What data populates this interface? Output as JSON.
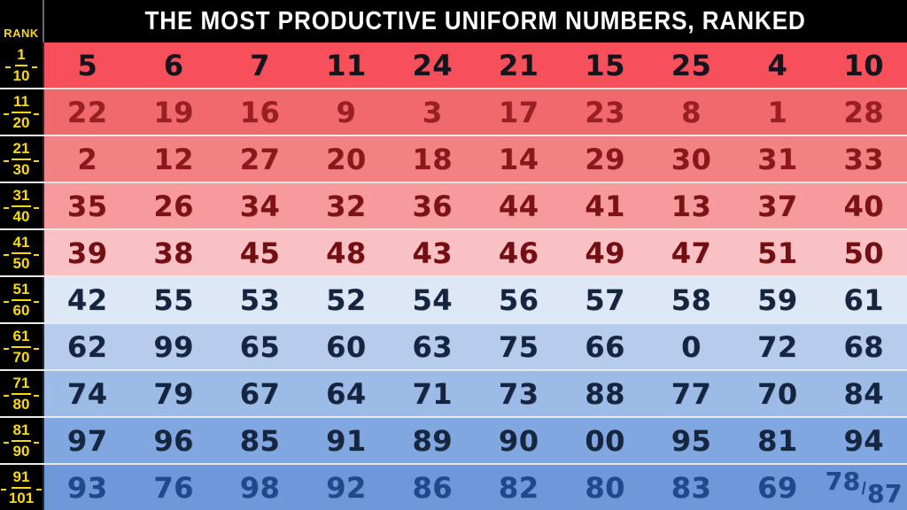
{
  "header": {
    "title": "THE MOST PRODUCTIVE UNIFORM NUMBERS, RANKED",
    "rank_label": "RANK",
    "bg": "#000000",
    "title_color": "#ffffff",
    "rank_label_color": "#fada05"
  },
  "rows": [
    {
      "rank_top": "1",
      "rank_bottom": "10",
      "bg": "#f8505a",
      "fg": "#14141f",
      "numbers": [
        "5",
        "6",
        "7",
        "11",
        "24",
        "21",
        "15",
        "25",
        "4",
        "10"
      ]
    },
    {
      "rank_top": "11",
      "rank_bottom": "20",
      "bg": "#ef696d",
      "fg": "#9a1e24",
      "numbers": [
        "22",
        "19",
        "16",
        "9",
        "3",
        "17",
        "23",
        "8",
        "1",
        "28"
      ]
    },
    {
      "rank_top": "21",
      "rank_bottom": "30",
      "bg": "#f28184",
      "fg": "#8c161b",
      "numbers": [
        "2",
        "12",
        "27",
        "20",
        "18",
        "14",
        "29",
        "30",
        "31",
        "33"
      ]
    },
    {
      "rank_top": "31",
      "rank_bottom": "40",
      "bg": "#f69a9d",
      "fg": "#7d1216",
      "numbers": [
        "35",
        "26",
        "34",
        "32",
        "36",
        "44",
        "41",
        "13",
        "37",
        "40"
      ]
    },
    {
      "rank_top": "41",
      "rank_bottom": "50",
      "bg": "#f9c1c4",
      "fg": "#730f13",
      "numbers": [
        "39",
        "38",
        "45",
        "48",
        "43",
        "46",
        "49",
        "47",
        "51",
        "50"
      ]
    },
    {
      "rank_top": "51",
      "rank_bottom": "60",
      "bg": "#dde7f6",
      "fg": "#15243f",
      "numbers": [
        "42",
        "55",
        "53",
        "52",
        "54",
        "56",
        "57",
        "58",
        "59",
        "61"
      ]
    },
    {
      "rank_top": "61",
      "rank_bottom": "70",
      "bg": "#b6ccec",
      "fg": "#15243f",
      "numbers": [
        "62",
        "99",
        "65",
        "60",
        "63",
        "75",
        "66",
        "0",
        "72",
        "68"
      ]
    },
    {
      "rank_top": "71",
      "rank_bottom": "80",
      "bg": "#9cbbe7",
      "fg": "#15243f",
      "numbers": [
        "74",
        "79",
        "67",
        "64",
        "71",
        "73",
        "88",
        "77",
        "70",
        "84"
      ]
    },
    {
      "rank_top": "81",
      "rank_bottom": "90",
      "bg": "#80a7e0",
      "fg": "#16263f",
      "numbers": [
        "97",
        "96",
        "85",
        "91",
        "89",
        "90",
        "00",
        "95",
        "81",
        "94"
      ]
    },
    {
      "rank_top": "91",
      "rank_bottom": "101",
      "bg": "#6d99da",
      "fg": "#1d4a8c",
      "numbers": [
        "93",
        "76",
        "98",
        "92",
        "86",
        "82",
        "80",
        "83",
        "69"
      ],
      "tie": {
        "a": "78",
        "divider": "/",
        "b": "87"
      }
    }
  ],
  "chart_data": {
    "type": "table",
    "title": "THE MOST PRODUCTIVE UNIFORM NUMBERS, RANKED",
    "row_labels": [
      "1-10",
      "11-20",
      "21-30",
      "31-40",
      "41-50",
      "51-60",
      "61-70",
      "71-80",
      "81-90",
      "91-101"
    ],
    "grid": [
      [
        "5",
        "6",
        "7",
        "11",
        "24",
        "21",
        "15",
        "25",
        "4",
        "10"
      ],
      [
        "22",
        "19",
        "16",
        "9",
        "3",
        "17",
        "23",
        "8",
        "1",
        "28"
      ],
      [
        "2",
        "12",
        "27",
        "20",
        "18",
        "14",
        "29",
        "30",
        "31",
        "33"
      ],
      [
        "35",
        "26",
        "34",
        "32",
        "36",
        "44",
        "41",
        "13",
        "37",
        "40"
      ],
      [
        "39",
        "38",
        "45",
        "48",
        "43",
        "46",
        "49",
        "47",
        "51",
        "50"
      ],
      [
        "42",
        "55",
        "53",
        "52",
        "54",
        "56",
        "57",
        "58",
        "59",
        "61"
      ],
      [
        "62",
        "99",
        "65",
        "60",
        "63",
        "75",
        "66",
        "0",
        "72",
        "68"
      ],
      [
        "74",
        "79",
        "67",
        "64",
        "71",
        "73",
        "88",
        "77",
        "70",
        "84"
      ],
      [
        "97",
        "96",
        "85",
        "91",
        "89",
        "90",
        "00",
        "95",
        "81",
        "94"
      ],
      [
        "93",
        "76",
        "98",
        "92",
        "86",
        "82",
        "80",
        "83",
        "69",
        "78/87"
      ]
    ],
    "color_scale": {
      "top_rows": "#f8505a",
      "bottom_rows": "#6d99da",
      "description": "red (highest ranked) fading to blue (lowest ranked)"
    },
    "legend_position": "none",
    "note": "Final cell displays 78/87 stacked (two numbers share the last slot of ranks 91-101)"
  }
}
